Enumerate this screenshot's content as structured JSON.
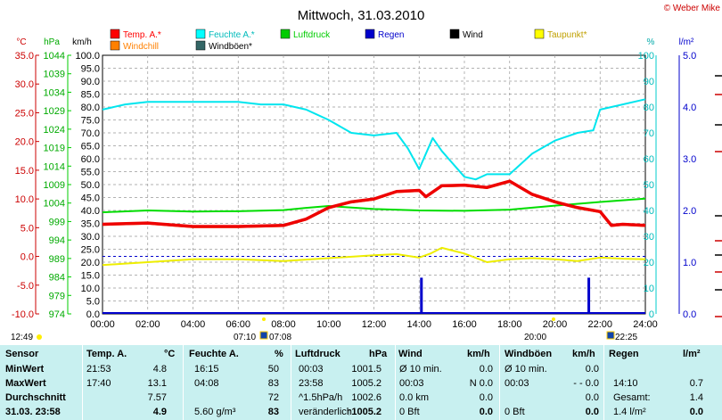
{
  "header": {
    "title": "Mittwoch, 31.03.2010",
    "copyright": "© Weber Mike"
  },
  "legend": [
    {
      "label": "Temp. A.*",
      "color": "#ff0000"
    },
    {
      "label": "Feuchte A.*",
      "color": "#00ffff"
    },
    {
      "label": "Luftdruck",
      "color": "#00cc00"
    },
    {
      "label": "Regen",
      "color": "#0000cc"
    },
    {
      "label": "Wind",
      "color": "#000000"
    },
    {
      "label": "Taupunkt*",
      "color": "#ffff00"
    },
    {
      "label": "Windchill",
      "color": "#ff8000"
    },
    {
      "label": "Windböen*",
      "color": "#336666"
    }
  ],
  "axis_units": {
    "temp": "°C",
    "press": "hPa",
    "wind": "km/h",
    "hum": "%",
    "rain": "l/m²"
  },
  "axis_labels": {
    "temp": [
      "35.0",
      "30.0",
      "25.0",
      "20.0",
      "15.0",
      "10.0",
      "5.0",
      "0.0",
      "-5.0",
      "-10.0"
    ],
    "press": [
      "1044",
      "1039",
      "1034",
      "1029",
      "1024",
      "1019",
      "1014",
      "1009",
      "1004",
      "999",
      "994",
      "989",
      "984",
      "979",
      "974"
    ],
    "wind": [
      "100.0",
      "95.0",
      "90.0",
      "85.0",
      "80.0",
      "75.0",
      "70.0",
      "65.0",
      "60.0",
      "55.0",
      "50.0",
      "45.0",
      "40.0",
      "35.0",
      "30.0",
      "25.0",
      "20.0",
      "15.0",
      "10.0",
      "5.0",
      "0.0"
    ],
    "hum": [
      "100",
      "90",
      "80",
      "70",
      "60",
      "50",
      "40",
      "30",
      "20",
      "10",
      "0"
    ],
    "rain": [
      "5.0",
      "4.0",
      "3.0",
      "2.0",
      "1.0",
      "0.0"
    ],
    "time": [
      "00:00",
      "02:00",
      "04:00",
      "06:00",
      "08:00",
      "10:00",
      "12:00",
      "14:00",
      "16:00",
      "18:00",
      "20:00",
      "22:00",
      "24:00"
    ]
  },
  "sun": {
    "sunrise_icon": "12:49",
    "sunrise": "07:10",
    "sunset": "07:08",
    "sunset2": "20:00",
    "moon": "22:25"
  },
  "chart_data": {
    "type": "line",
    "title": "Mittwoch, 31.03.2010",
    "x_unit": "hours",
    "series": [
      {
        "name": "Temp. A.*",
        "unit": "°C",
        "x": [
          0,
          2,
          4,
          6,
          8,
          9,
          10,
          11,
          12,
          13,
          14,
          14.3,
          15,
          16,
          17,
          18,
          19,
          20,
          21,
          22,
          22.5,
          23,
          24
        ],
        "values": [
          5.6,
          5.8,
          5.2,
          5.2,
          5.4,
          6.5,
          8.5,
          9.5,
          10,
          11.3,
          11.5,
          10.4,
          12.3,
          12.4,
          12.0,
          13.1,
          10.8,
          9.5,
          8.5,
          7.8,
          5.4,
          5.6,
          5.4
        ]
      },
      {
        "name": "Feuchte A.*",
        "unit": "%",
        "x": [
          0,
          1,
          2,
          4,
          6,
          7,
          8,
          9,
          10,
          11,
          12,
          13,
          13.5,
          14,
          14.6,
          15,
          16,
          16.5,
          17,
          18,
          19,
          20,
          21,
          21.7,
          22,
          22.5,
          24
        ],
        "values": [
          79,
          81,
          82,
          82,
          82,
          81,
          81,
          79,
          75,
          70,
          69,
          70,
          64,
          56,
          68,
          63,
          53,
          52,
          54,
          54,
          62,
          67,
          70,
          71,
          79,
          80,
          83
        ]
      },
      {
        "name": "Luftdruck",
        "unit": "hPa",
        "x": [
          0,
          2,
          4,
          6,
          8,
          9,
          10,
          12,
          14,
          16,
          18,
          20,
          22,
          24
        ],
        "values": [
          1001.5,
          1002.0,
          1001.7,
          1001.8,
          1002.1,
          1002.7,
          1003.2,
          1002.4,
          1002.0,
          1001.9,
          1002.2,
          1003.3,
          1004.3,
          1005.2
        ]
      },
      {
        "name": "Taupunkt*",
        "unit": "°C",
        "x": [
          0,
          2,
          4,
          6,
          8,
          10,
          12,
          13,
          14,
          14.5,
          15,
          16,
          17,
          18,
          19,
          20,
          21,
          22,
          23,
          24
        ],
        "values": [
          -1.5,
          -1,
          -0.5,
          -0.5,
          -0.8,
          -0.3,
          0.2,
          0.4,
          -0.2,
          0.5,
          1.5,
          0.5,
          -1.0,
          -0.5,
          -0.3,
          -0.5,
          -0.8,
          -0.2,
          -0.4,
          -0.5
        ]
      },
      {
        "name": "Regen",
        "unit": "l/m²",
        "bars": [
          {
            "x": 14.1,
            "value": 0.7
          },
          {
            "x": 21.5,
            "value": 0.7
          }
        ]
      },
      {
        "name": "Wind",
        "unit": "km/h",
        "values": [
          0
        ]
      },
      {
        "name": "Windböen*",
        "unit": "km/h",
        "values": [
          0
        ]
      }
    ],
    "xlim": [
      0,
      24
    ],
    "temp_ylim": [
      -10,
      35
    ],
    "hum_ylim": [
      0,
      100
    ],
    "rain_ylim": [
      0,
      5
    ],
    "press_ylim": [
      974,
      1044
    ],
    "wind_ylim": [
      0,
      100
    ],
    "grid": true
  },
  "table": {
    "headers": [
      "Sensor",
      "Temp. A.",
      "°C",
      "Feuchte A.",
      "%",
      "Luftdruck",
      "hPa",
      "Wind",
      "km/h",
      "Windböen",
      "km/h",
      "Regen",
      "l/m²"
    ],
    "rows": [
      {
        "label": "MinWert",
        "c": [
          "21:53",
          "4.8",
          "16:15",
          "50",
          "00:03",
          "1001.5",
          "Ø 10 min.",
          "0.0",
          "Ø 10 min.",
          "0.0",
          "",
          ""
        ]
      },
      {
        "label": "MaxWert",
        "c": [
          "17:40",
          "13.1",
          "04:08",
          "83",
          "23:58",
          "1005.2",
          "00:03",
          "N 0.0",
          "00:03",
          "- - 0.0",
          "14:10",
          "0.7"
        ]
      },
      {
        "label": "Durchschnitt",
        "c": [
          "",
          "7.57",
          "",
          "72",
          "^1.5hPa/h",
          "1002.6",
          "0.0 km",
          "0.0",
          "",
          "0.0",
          "Gesamt:",
          "1.4"
        ]
      },
      {
        "label": "31.03. 23:58",
        "c": [
          "",
          "4.9",
          "5.60 g/m³",
          "83",
          "veränderlich",
          "↑1005.2",
          "0 Bft",
          "0.0",
          "0 Bft",
          "0.0",
          "1.4 l/m²",
          "0.0"
        ]
      }
    ]
  }
}
